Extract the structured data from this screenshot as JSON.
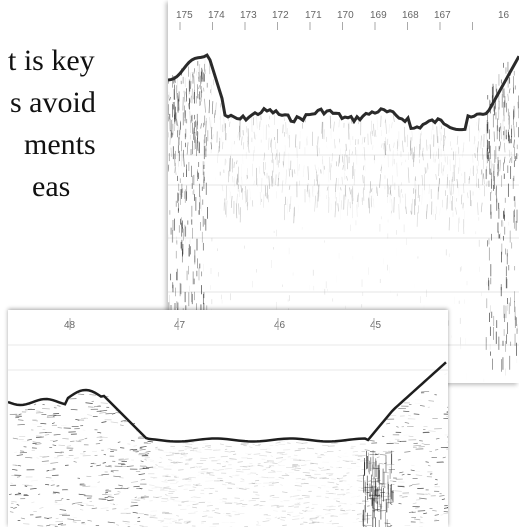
{
  "slide": {
    "lines": [
      "t is key",
      "s avoid",
      "ments",
      "eas"
    ]
  },
  "top_profile": {
    "ticks": [
      "175",
      "174",
      "173",
      "172",
      "171",
      "170",
      "169",
      "168",
      "167",
      "16"
    ],
    "ink_color": "#2a2a2a"
  },
  "bottom_profile": {
    "ticks": [
      "48",
      "47",
      "46",
      "45"
    ],
    "ink_color": "#1e1e1e"
  }
}
